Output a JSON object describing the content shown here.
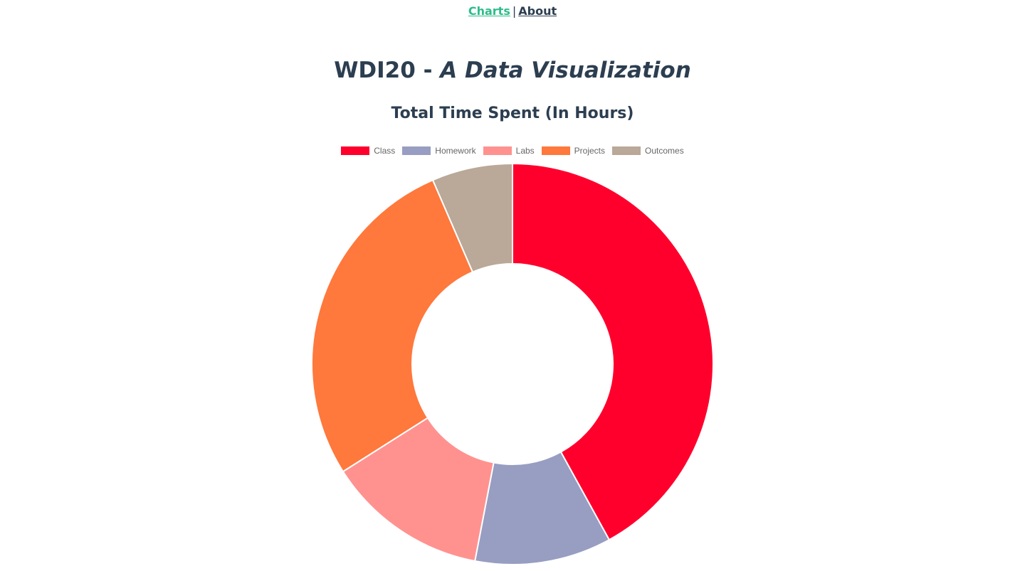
{
  "nav": {
    "charts_label": "Charts",
    "separator": "|",
    "about_label": "About"
  },
  "header": {
    "title_plain": "WDI20 - ",
    "title_italic": "A Data Visualization"
  },
  "chart_data": {
    "type": "pie",
    "variant": "doughnut",
    "title": "Total Time Spent (In Hours)",
    "legend_position": "top",
    "categories": [
      "Class",
      "Homework",
      "Labs",
      "Projects",
      "Outcomes"
    ],
    "values": [
      42,
      11,
      13,
      27.5,
      6.5
    ],
    "colors": [
      "#ff002d",
      "#989dc2",
      "#ff928f",
      "#ff783c",
      "#baa898"
    ]
  }
}
